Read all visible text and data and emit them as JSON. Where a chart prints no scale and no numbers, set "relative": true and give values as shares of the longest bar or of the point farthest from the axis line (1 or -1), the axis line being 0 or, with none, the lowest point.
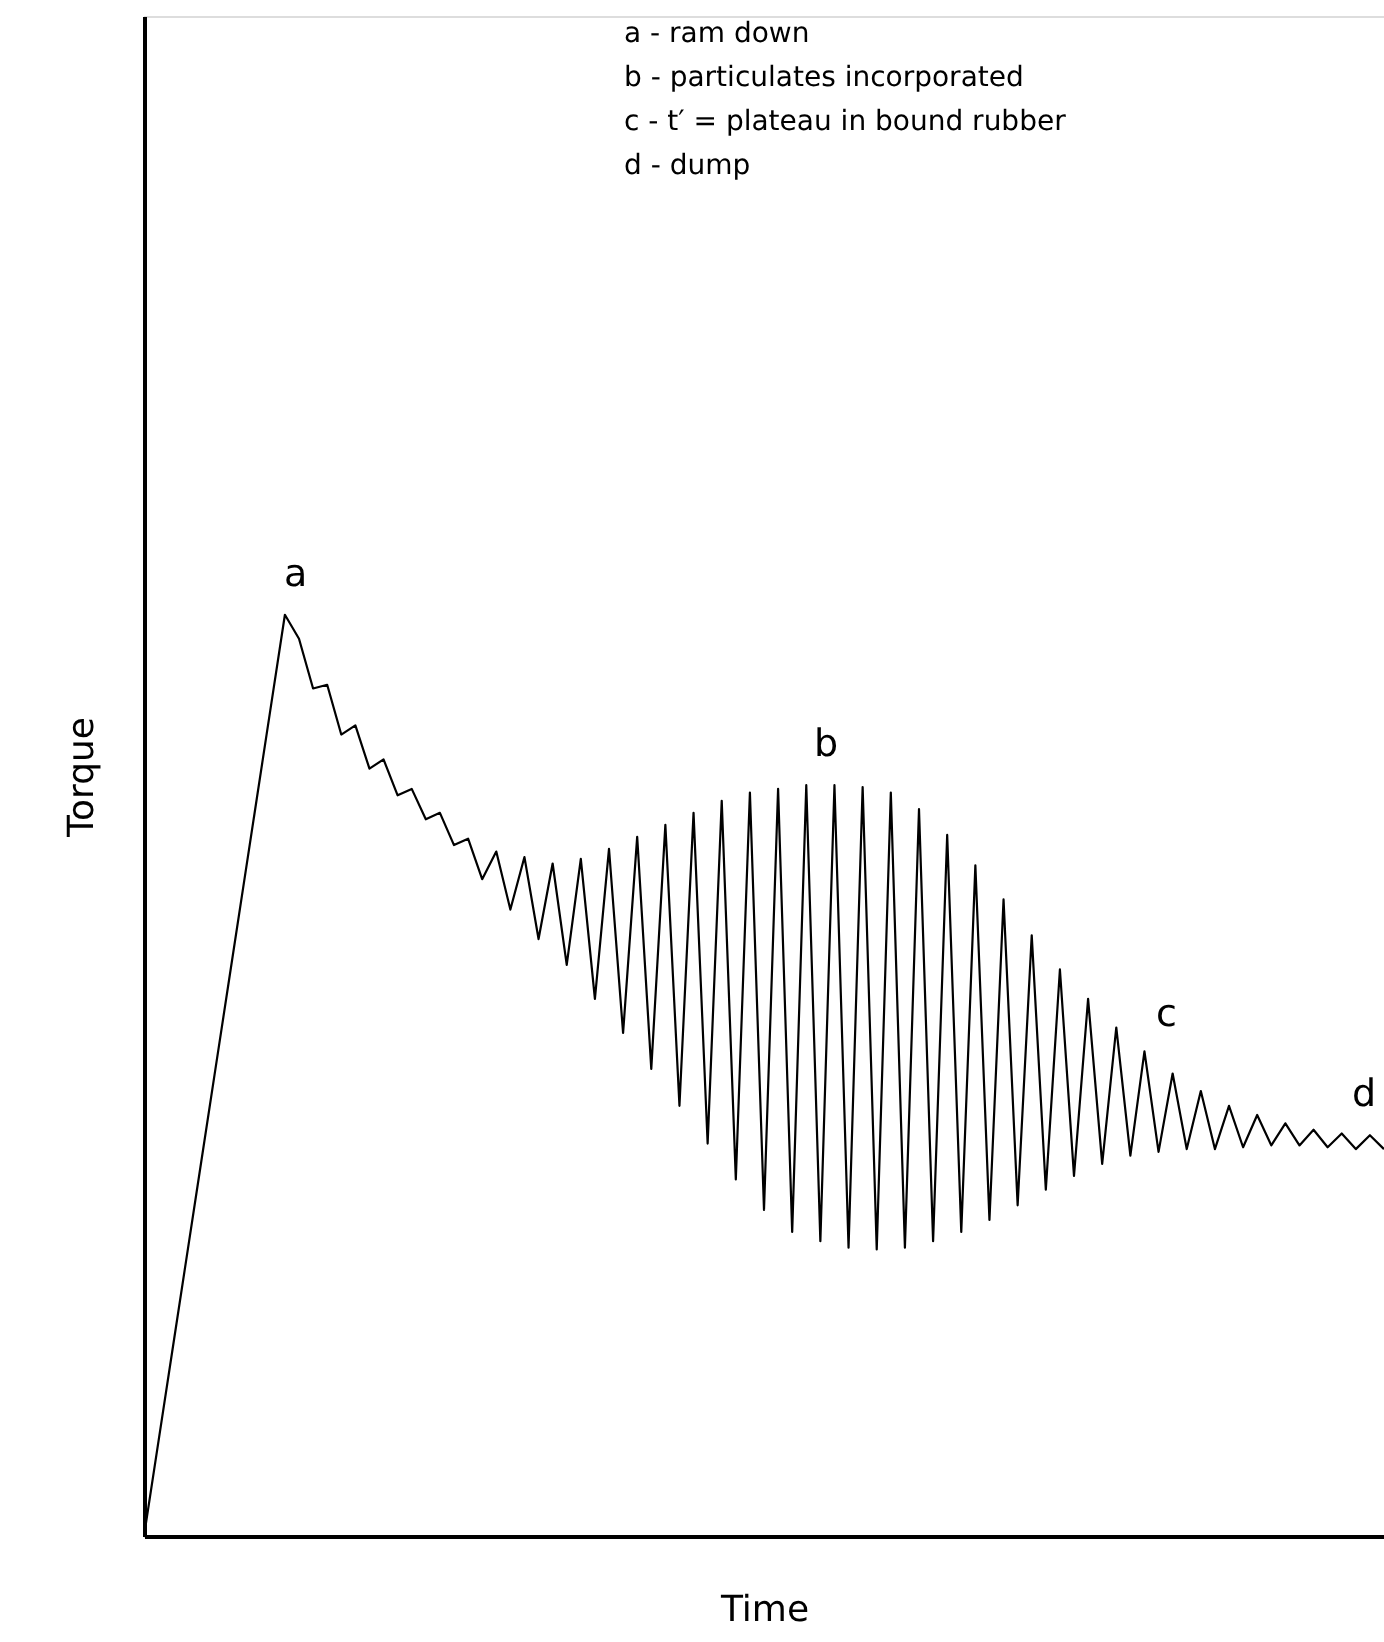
{
  "chart_data": {
    "type": "line",
    "relative": true,
    "xlabel": "Time",
    "ylabel": "Torque",
    "tick_labels": false,
    "grid": false,
    "marker": "none",
    "line_style": "solid",
    "categories": [
      null,
      null,
      null,
      null,
      null,
      null,
      null,
      null,
      null,
      null,
      null,
      null,
      null,
      null,
      null,
      null,
      null,
      null,
      null,
      null,
      null,
      null,
      null,
      null,
      null,
      null,
      null,
      null,
      null,
      null,
      null,
      null,
      null,
      null,
      null,
      null,
      null,
      null,
      null,
      null,
      null,
      null,
      null,
      null,
      null,
      null,
      null,
      null,
      null,
      null,
      null,
      null,
      null,
      null,
      null,
      null,
      null,
      null,
      null,
      null,
      null,
      null,
      null,
      null,
      null,
      null,
      null,
      null,
      null,
      null,
      null,
      null,
      null,
      null,
      null,
      null,
      null,
      null,
      null,
      null,
      null,
      null,
      null,
      null,
      null,
      null,
      null,
      null,
      null
    ],
    "series": [
      {
        "color": "#000000",
        "values": [
          0,
          0.1,
          0.2,
          0.3,
          0.4,
          0.5,
          0.6,
          0.7,
          0.8,
          0.9,
          1,
          0.974,
          0.92,
          0.924,
          0.87,
          0.88,
          0.833,
          0.843,
          0.804,
          0.811,
          0.778,
          0.785,
          0.75,
          0.757,
          0.713,
          0.743,
          0.68,
          0.737,
          0.648,
          0.73,
          0.62,
          0.735,
          0.583,
          0.746,
          0.546,
          0.759,
          0.507,
          0.772,
          0.467,
          0.785,
          0.426,
          0.798,
          0.387,
          0.807,
          0.354,
          0.811,
          0.33,
          0.815,
          0.32,
          0.815,
          0.313,
          0.813,
          0.311,
          0.807,
          0.313,
          0.789,
          0.32,
          0.761,
          0.33,
          0.728,
          0.343,
          0.691,
          0.359,
          0.652,
          0.376,
          0.615,
          0.391,
          0.583,
          0.404,
          0.552,
          0.413,
          0.526,
          0.417,
          0.502,
          0.42,
          0.483,
          0.42,
          0.467,
          0.422,
          0.457,
          0.424,
          0.448,
          0.424,
          0.441,
          0.422,
          0.437,
          0.42,
          0.435,
          0.42
        ]
      }
    ],
    "annotations": [
      "a - ram down",
      "b - particulates incorporated",
      "c - t′ = plateau in bound rubber",
      "d - dump",
      "a",
      "b",
      "c",
      "d"
    ]
  }
}
